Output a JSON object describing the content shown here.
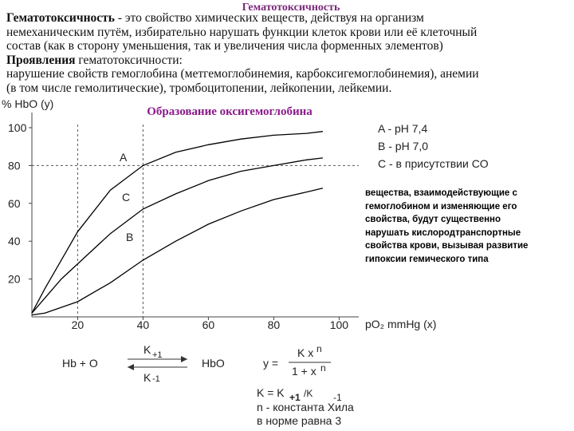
{
  "slide": {
    "title": "Гематотоксичность",
    "lines": [
      {
        "bold": "Гематотоксичность",
        "text": " - это свойство химических веществ, действуя на организм"
      },
      {
        "text": "немеханическим путём, избирательно нарушать функции клеток крови или её клеточный"
      },
      {
        "text": "состав (как в сторону уменьшения, так и увеличения числа форменных элементов)"
      },
      {
        "bold": "Проявления",
        "text": " гематотоксичности:"
      },
      {
        "text": "нарушение свойств гемоглобина (метгемоглобинемия, карбоксигемоглобинемия), анемии"
      },
      {
        "text": "(в том числе гемолитические), тромбоцитопении, лейкопении, лейкемии."
      }
    ],
    "notes": [
      "A - pH 7,4",
      "B - pH 7,0",
      "C - в присутствии CO"
    ],
    "side_text": [
      "вещества, взаимодействующие с",
      "гемоглобином и изменяющие его",
      "свойства, будут существенно",
      "нарушать кислородтранспортные",
      "свойства крови, вызывая развитие",
      "гипоксии гемического типа"
    ],
    "equations": {
      "reaction_left": "Hb + O",
      "k_forward": "K",
      "k_forward_sub": "+1",
      "k_back": "K",
      "k_back_sub": "-1",
      "reaction_right": "HbO",
      "hill_lhs": "y =",
      "hill_num": "K x",
      "hill_num_sup": "n",
      "hill_den": "1 + x",
      "hill_den_sup": "n",
      "k_def": "K = K",
      "k_def_sub1": "+1",
      "k_def_mid": "/K",
      "k_def_sub2": "-1",
      "note1": "n - константа Хила",
      "note2": "в норме равна 3"
    }
  },
  "chart_data": {
    "type": "line",
    "title": "Образование оксигемоглобина",
    "y_label": "% HbO (y)",
    "x_label": "pO₂ mmHg (x)",
    "x": [
      6,
      10,
      15,
      20,
      30,
      40,
      50,
      60,
      70,
      80,
      90,
      95
    ],
    "series": [
      {
        "name": "A",
        "color": "#000000",
        "values": [
          2,
          15,
          30,
          45,
          67,
          80,
          87,
          91,
          94,
          96,
          97,
          98
        ]
      },
      {
        "name": "B",
        "color": "#000000",
        "values": [
          1,
          2,
          5,
          8,
          18,
          30,
          40,
          49,
          56,
          62,
          66,
          68
        ]
      },
      {
        "name": "C",
        "color": "#000000",
        "values": [
          2,
          10,
          20,
          28,
          44,
          57,
          65,
          72,
          77,
          80,
          83,
          84
        ]
      }
    ],
    "xlim": [
      6,
      106
    ],
    "ylim": [
      0,
      108
    ],
    "xticks": [
      20,
      40,
      60,
      80,
      100
    ],
    "yticks": [
      20,
      40,
      60,
      80,
      100
    ],
    "guide_x": [
      20,
      40
    ],
    "guide_y": [
      80
    ]
  }
}
